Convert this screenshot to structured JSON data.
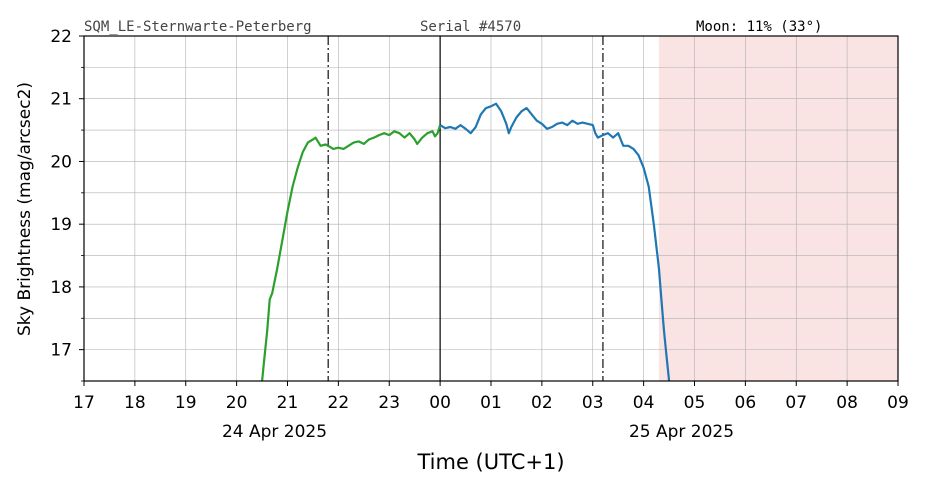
{
  "header": {
    "station": "SQM_LE-Sternwarte-Peterberg",
    "serial": "Serial #4570",
    "moon": "Moon: 11% (33°)"
  },
  "chart_data": {
    "type": "line",
    "xlabel": "Time (UTC+1)",
    "ylabel": "Sky Brightness (mag/arcsec2)",
    "xlim_hours": [
      17,
      33
    ],
    "ylim": [
      16.5,
      22
    ],
    "y_ticks": [
      17,
      18,
      19,
      20,
      21,
      22
    ],
    "x_tick_labels": [
      "17",
      "18",
      "19",
      "20",
      "21",
      "22",
      "23",
      "00",
      "01",
      "02",
      "03",
      "04",
      "05",
      "06",
      "07",
      "08",
      "09"
    ],
    "date_labels": [
      {
        "label": "24 Apr 2025",
        "at_hour": 21
      },
      {
        "label": "25 Apr 2025",
        "at_hour": 29
      }
    ],
    "grid": true,
    "minor_grid": true,
    "midnight_line_hour": 24,
    "twilight_lines_hours": [
      21.8,
      27.2
    ],
    "moon_shade_start_hour": 28.3,
    "colors": {
      "evening": "#2ca02c",
      "morning": "#1f77b4",
      "moon_shade": "#f9e3e3",
      "twilight_line": "#222222",
      "midnight_line": "#000000"
    },
    "series": [
      {
        "points": [
          [
            20.5,
            16.5
          ],
          [
            20.55,
            16.9
          ],
          [
            20.6,
            17.3
          ],
          [
            20.65,
            17.8
          ],
          [
            20.7,
            17.9
          ],
          [
            20.8,
            18.3
          ],
          [
            20.9,
            18.75
          ],
          [
            21.0,
            19.2
          ],
          [
            21.1,
            19.6
          ],
          [
            21.2,
            19.9
          ],
          [
            21.3,
            20.15
          ],
          [
            21.4,
            20.3
          ],
          [
            21.5,
            20.35
          ],
          [
            21.55,
            20.38
          ],
          [
            21.65,
            20.25
          ],
          [
            21.75,
            20.27
          ],
          [
            21.8,
            20.25
          ],
          [
            21.9,
            20.2
          ],
          [
            22.0,
            20.22
          ],
          [
            22.1,
            20.2
          ],
          [
            22.2,
            20.25
          ],
          [
            22.3,
            20.3
          ],
          [
            22.4,
            20.32
          ],
          [
            22.5,
            20.28
          ],
          [
            22.6,
            20.35
          ],
          [
            22.7,
            20.38
          ],
          [
            22.8,
            20.42
          ],
          [
            22.9,
            20.45
          ],
          [
            23.0,
            20.42
          ],
          [
            23.1,
            20.48
          ],
          [
            23.2,
            20.45
          ],
          [
            23.3,
            20.38
          ],
          [
            23.4,
            20.45
          ],
          [
            23.5,
            20.35
          ],
          [
            23.55,
            20.28
          ],
          [
            23.65,
            20.38
          ],
          [
            23.75,
            20.45
          ],
          [
            23.85,
            20.48
          ],
          [
            23.9,
            20.4
          ],
          [
            23.95,
            20.45
          ],
          [
            24.0,
            20.58
          ]
        ]
      },
      {
        "points": [
          [
            24.0,
            20.58
          ],
          [
            24.1,
            20.53
          ],
          [
            24.2,
            20.55
          ],
          [
            24.3,
            20.52
          ],
          [
            24.4,
            20.58
          ],
          [
            24.5,
            20.52
          ],
          [
            24.6,
            20.45
          ],
          [
            24.7,
            20.55
          ],
          [
            24.8,
            20.75
          ],
          [
            24.9,
            20.85
          ],
          [
            25.0,
            20.88
          ],
          [
            25.1,
            20.92
          ],
          [
            25.2,
            20.8
          ],
          [
            25.3,
            20.6
          ],
          [
            25.35,
            20.45
          ],
          [
            25.4,
            20.55
          ],
          [
            25.5,
            20.7
          ],
          [
            25.6,
            20.8
          ],
          [
            25.7,
            20.85
          ],
          [
            25.8,
            20.75
          ],
          [
            25.9,
            20.65
          ],
          [
            26.0,
            20.6
          ],
          [
            26.1,
            20.52
          ],
          [
            26.2,
            20.55
          ],
          [
            26.3,
            20.6
          ],
          [
            26.4,
            20.62
          ],
          [
            26.5,
            20.58
          ],
          [
            26.6,
            20.65
          ],
          [
            26.7,
            20.6
          ],
          [
            26.8,
            20.62
          ],
          [
            26.9,
            20.6
          ],
          [
            27.0,
            20.58
          ],
          [
            27.05,
            20.45
          ],
          [
            27.1,
            20.38
          ],
          [
            27.2,
            20.42
          ],
          [
            27.3,
            20.45
          ],
          [
            27.4,
            20.38
          ],
          [
            27.5,
            20.45
          ],
          [
            27.55,
            20.35
          ],
          [
            27.6,
            20.25
          ],
          [
            27.7,
            20.25
          ],
          [
            27.8,
            20.2
          ],
          [
            27.9,
            20.1
          ],
          [
            28.0,
            19.9
          ],
          [
            28.1,
            19.6
          ],
          [
            28.2,
            19.0
          ],
          [
            28.3,
            18.3
          ],
          [
            28.35,
            17.8
          ],
          [
            28.4,
            17.3
          ],
          [
            28.45,
            16.9
          ],
          [
            28.5,
            16.5
          ]
        ]
      }
    ]
  }
}
